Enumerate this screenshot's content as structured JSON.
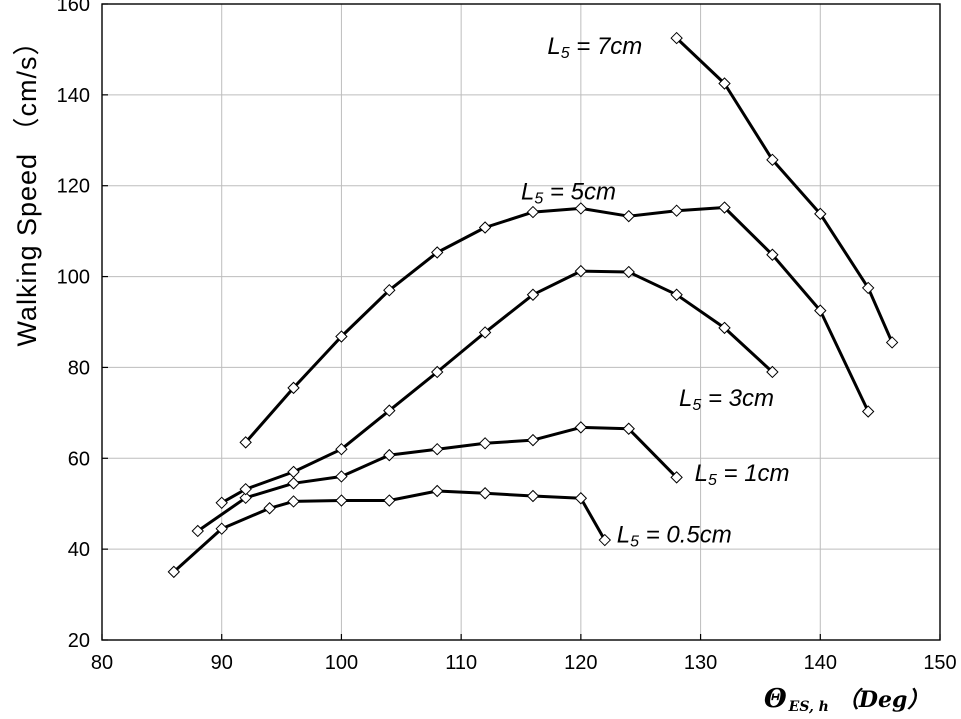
{
  "chart_data": {
    "type": "line",
    "title": "",
    "ylabel": "Walking Speed （cm/s）",
    "xlabel": {
      "symbol": "Θ",
      "subscript": "ES, h",
      "unit": "（Deg）"
    },
    "xlim": [
      80,
      150
    ],
    "ylim": [
      20,
      160
    ],
    "xticks": [
      80,
      90,
      100,
      110,
      120,
      130,
      140,
      150
    ],
    "yticks": [
      20,
      40,
      60,
      80,
      100,
      120,
      140,
      160
    ],
    "grid": true,
    "legend": "none",
    "series": [
      {
        "label_parts": [
          "L",
          "5",
          " = 0.5cm"
        ],
        "label_at": [
          123,
          41.5
        ],
        "x": [
          86,
          90,
          94,
          96,
          100,
          104,
          108,
          112,
          116,
          120,
          122
        ],
        "y": [
          35,
          44.5,
          49,
          50.5,
          50.7,
          50.7,
          52.8,
          52.3,
          51.7,
          51.2,
          42
        ]
      },
      {
        "label_parts": [
          "L",
          "5",
          " = 1cm"
        ],
        "label_at": [
          129.5,
          55
        ],
        "x": [
          88,
          92,
          96,
          100,
          104,
          108,
          112,
          116,
          120,
          124,
          128
        ],
        "y": [
          44,
          51.3,
          54.5,
          56,
          60.7,
          62,
          63.3,
          64,
          66.8,
          66.5,
          55.8
        ]
      },
      {
        "label_parts": [
          "L",
          "5",
          " = 3cm"
        ],
        "label_at": [
          128.2,
          71.5
        ],
        "x": [
          90,
          92,
          96,
          100,
          104,
          108,
          112,
          116,
          120,
          124,
          128,
          132,
          136
        ],
        "y": [
          50.2,
          53.2,
          57,
          62,
          70.5,
          79,
          87.7,
          96,
          101.2,
          101,
          96,
          88.7,
          79
        ]
      },
      {
        "label_parts": [
          "L",
          "5",
          " = 5cm"
        ],
        "label_at": [
          115,
          117
        ],
        "x": [
          92,
          96,
          100,
          104,
          108,
          112,
          116,
          120,
          124,
          128,
          132,
          136,
          140,
          144
        ],
        "y": [
          63.5,
          75.5,
          86.8,
          97,
          105.3,
          110.8,
          114.2,
          115,
          113.3,
          114.5,
          115.2,
          104.8,
          92.5,
          70.3
        ]
      },
      {
        "label_parts": [
          "L",
          "5",
          " = 7cm"
        ],
        "label_at": [
          117.2,
          149
        ],
        "x": [
          128,
          132,
          136,
          140,
          144,
          146
        ],
        "y": [
          152.5,
          142.5,
          125.7,
          113.8,
          97.5,
          85.5
        ]
      }
    ]
  }
}
